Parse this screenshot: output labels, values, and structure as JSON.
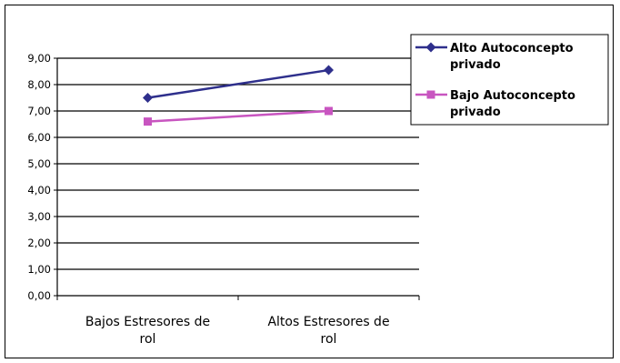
{
  "chart_data": {
    "type": "line",
    "title": "",
    "xlabel": "",
    "ylabel": "",
    "categories": [
      [
        "Bajos Estresores de",
        "rol"
      ],
      [
        "Altos Estresores de",
        "rol"
      ]
    ],
    "ylim": [
      0,
      9
    ],
    "ytick_step": 1,
    "ytick_labels": [
      "0,00",
      "1,00",
      "2,00",
      "3,00",
      "4,00",
      "5,00",
      "6,00",
      "7,00",
      "8,00",
      "9,00"
    ],
    "grid": true,
    "legend_position": "top-right",
    "series": [
      {
        "name": [
          "Alto Autoconcepto",
          "privado"
        ],
        "values": [
          7.5,
          8.55
        ],
        "color": "#2e2f8c",
        "marker": "diamond"
      },
      {
        "name": [
          "Bajo Autoconcepto",
          "privado"
        ],
        "values": [
          6.6,
          7.0
        ],
        "color": "#c855c0",
        "marker": "square"
      }
    ]
  }
}
